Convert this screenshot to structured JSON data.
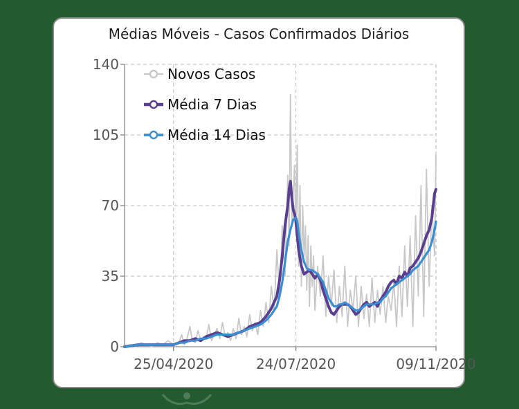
{
  "chart_data": {
    "type": "line",
    "title": "Médias Móveis - Casos Confirmados Diários",
    "ylim": [
      0,
      140
    ],
    "yticks": [
      0,
      35,
      70,
      105,
      140
    ],
    "xticks": [
      "25/04/2020",
      "24/07/2020",
      "09/11/2020"
    ],
    "x_range_days": [
      0,
      229
    ],
    "xtick_days": [
      36,
      126,
      234
    ],
    "legend_position": "top-left",
    "grid": true,
    "series": [
      {
        "name": "Novos Casos",
        "color": "#c8c8c8",
        "points": [
          [
            0,
            0
          ],
          [
            4,
            1
          ],
          [
            8,
            0
          ],
          [
            12,
            2
          ],
          [
            16,
            1
          ],
          [
            20,
            0
          ],
          [
            24,
            2
          ],
          [
            28,
            1
          ],
          [
            32,
            3
          ],
          [
            36,
            1
          ],
          [
            40,
            2
          ],
          [
            42,
            6
          ],
          [
            44,
            1
          ],
          [
            46,
            4
          ],
          [
            48,
            10
          ],
          [
            50,
            3
          ],
          [
            52,
            2
          ],
          [
            54,
            8
          ],
          [
            56,
            3
          ],
          [
            58,
            5
          ],
          [
            60,
            4
          ],
          [
            62,
            11
          ],
          [
            64,
            3
          ],
          [
            66,
            6
          ],
          [
            68,
            9
          ],
          [
            70,
            4
          ],
          [
            72,
            12
          ],
          [
            74,
            5
          ],
          [
            76,
            7
          ],
          [
            78,
            3
          ],
          [
            80,
            9
          ],
          [
            82,
            4
          ],
          [
            84,
            14
          ],
          [
            86,
            6
          ],
          [
            88,
            10
          ],
          [
            90,
            5
          ],
          [
            92,
            16
          ],
          [
            94,
            8
          ],
          [
            96,
            12
          ],
          [
            98,
            6
          ],
          [
            100,
            18
          ],
          [
            102,
            10
          ],
          [
            104,
            22
          ],
          [
            106,
            12
          ],
          [
            108,
            30
          ],
          [
            110,
            18
          ],
          [
            112,
            48
          ],
          [
            114,
            25
          ],
          [
            116,
            60
          ],
          [
            118,
            35
          ],
          [
            120,
            85
          ],
          [
            121,
            50
          ],
          [
            122,
            125
          ],
          [
            123,
            60
          ],
          [
            124,
            75
          ],
          [
            125,
            90
          ],
          [
            126,
            55
          ],
          [
            127,
            100
          ],
          [
            128,
            40
          ],
          [
            129,
            80
          ],
          [
            130,
            30
          ],
          [
            131,
            70
          ],
          [
            132,
            45
          ],
          [
            133,
            60
          ],
          [
            134,
            28
          ],
          [
            135,
            55
          ],
          [
            136,
            20
          ],
          [
            137,
            50
          ],
          [
            138,
            30
          ],
          [
            139,
            45
          ],
          [
            140,
            18
          ],
          [
            142,
            40
          ],
          [
            144,
            25
          ],
          [
            146,
            45
          ],
          [
            148,
            15
          ],
          [
            150,
            35
          ],
          [
            152,
            20
          ],
          [
            154,
            38
          ],
          [
            156,
            12
          ],
          [
            158,
            30
          ],
          [
            160,
            15
          ],
          [
            162,
            40
          ],
          [
            164,
            10
          ],
          [
            166,
            28
          ],
          [
            168,
            18
          ],
          [
            170,
            35
          ],
          [
            172,
            10
          ],
          [
            174,
            30
          ],
          [
            176,
            14
          ],
          [
            178,
            26
          ],
          [
            180,
            10
          ],
          [
            182,
            34
          ],
          [
            184,
            12
          ],
          [
            186,
            28
          ],
          [
            188,
            16
          ],
          [
            190,
            30
          ],
          [
            192,
            12
          ],
          [
            194,
            25
          ],
          [
            196,
            18
          ],
          [
            198,
            32
          ],
          [
            200,
            10
          ],
          [
            202,
            40
          ],
          [
            204,
            15
          ],
          [
            206,
            50
          ],
          [
            208,
            20
          ],
          [
            210,
            55
          ],
          [
            212,
            10
          ],
          [
            214,
            65
          ],
          [
            216,
            25
          ],
          [
            218,
            80
          ],
          [
            220,
            15
          ],
          [
            222,
            88
          ],
          [
            224,
            30
          ],
          [
            226,
            70
          ],
          [
            228,
            45
          ],
          [
            229,
            95
          ]
        ]
      },
      {
        "name": "Média 7 Dias",
        "color": "#5a3f8e",
        "points": [
          [
            0,
            0
          ],
          [
            10,
            1
          ],
          [
            20,
            1
          ],
          [
            30,
            1
          ],
          [
            36,
            1
          ],
          [
            40,
            2
          ],
          [
            44,
            3
          ],
          [
            48,
            3
          ],
          [
            52,
            4
          ],
          [
            56,
            3
          ],
          [
            60,
            5
          ],
          [
            64,
            6
          ],
          [
            68,
            7
          ],
          [
            72,
            6
          ],
          [
            76,
            5
          ],
          [
            80,
            6
          ],
          [
            84,
            7
          ],
          [
            88,
            8
          ],
          [
            92,
            10
          ],
          [
            96,
            11
          ],
          [
            100,
            12
          ],
          [
            104,
            15
          ],
          [
            108,
            19
          ],
          [
            112,
            25
          ],
          [
            114,
            33
          ],
          [
            116,
            45
          ],
          [
            118,
            60
          ],
          [
            120,
            70
          ],
          [
            121,
            78
          ],
          [
            122,
            82
          ],
          [
            123,
            74
          ],
          [
            124,
            68
          ],
          [
            125,
            66
          ],
          [
            126,
            62
          ],
          [
            127,
            55
          ],
          [
            128,
            48
          ],
          [
            129,
            44
          ],
          [
            130,
            40
          ],
          [
            132,
            36
          ],
          [
            134,
            37
          ],
          [
            136,
            38
          ],
          [
            138,
            36
          ],
          [
            140,
            34
          ],
          [
            142,
            36
          ],
          [
            144,
            33
          ],
          [
            146,
            28
          ],
          [
            148,
            24
          ],
          [
            150,
            20
          ],
          [
            152,
            17
          ],
          [
            154,
            16
          ],
          [
            156,
            18
          ],
          [
            158,
            20
          ],
          [
            160,
            21
          ],
          [
            162,
            21
          ],
          [
            164,
            21
          ],
          [
            166,
            20
          ],
          [
            168,
            18
          ],
          [
            170,
            16
          ],
          [
            172,
            17
          ],
          [
            174,
            19
          ],
          [
            176,
            21
          ],
          [
            178,
            22
          ],
          [
            180,
            20
          ],
          [
            182,
            21
          ],
          [
            184,
            22
          ],
          [
            186,
            20
          ],
          [
            188,
            23
          ],
          [
            190,
            25
          ],
          [
            192,
            27
          ],
          [
            194,
            30
          ],
          [
            196,
            32
          ],
          [
            198,
            33
          ],
          [
            200,
            31
          ],
          [
            202,
            35
          ],
          [
            204,
            34
          ],
          [
            206,
            37
          ],
          [
            208,
            35
          ],
          [
            210,
            39
          ],
          [
            212,
            40
          ],
          [
            214,
            42
          ],
          [
            216,
            44
          ],
          [
            218,
            47
          ],
          [
            220,
            51
          ],
          [
            222,
            55
          ],
          [
            224,
            58
          ],
          [
            226,
            64
          ],
          [
            228,
            76
          ],
          [
            229,
            78
          ]
        ]
      },
      {
        "name": "Média 14 Dias",
        "color": "#3b8fd0",
        "points": [
          [
            0,
            0
          ],
          [
            10,
            1
          ],
          [
            20,
            1
          ],
          [
            30,
            1
          ],
          [
            36,
            1
          ],
          [
            40,
            2
          ],
          [
            44,
            2
          ],
          [
            48,
            3
          ],
          [
            52,
            3
          ],
          [
            56,
            4
          ],
          [
            60,
            4
          ],
          [
            64,
            5
          ],
          [
            68,
            6
          ],
          [
            72,
            6
          ],
          [
            76,
            6
          ],
          [
            80,
            6
          ],
          [
            84,
            7
          ],
          [
            88,
            8
          ],
          [
            92,
            9
          ],
          [
            96,
            10
          ],
          [
            100,
            11
          ],
          [
            104,
            13
          ],
          [
            108,
            16
          ],
          [
            112,
            20
          ],
          [
            114,
            25
          ],
          [
            116,
            32
          ],
          [
            118,
            42
          ],
          [
            120,
            52
          ],
          [
            122,
            58
          ],
          [
            124,
            63
          ],
          [
            126,
            64
          ],
          [
            127,
            62
          ],
          [
            128,
            57
          ],
          [
            129,
            52
          ],
          [
            130,
            48
          ],
          [
            132,
            42
          ],
          [
            134,
            39
          ],
          [
            136,
            38
          ],
          [
            138,
            38
          ],
          [
            140,
            37
          ],
          [
            142,
            36
          ],
          [
            144,
            34
          ],
          [
            146,
            32
          ],
          [
            148,
            28
          ],
          [
            150,
            24
          ],
          [
            152,
            22
          ],
          [
            154,
            20
          ],
          [
            156,
            20
          ],
          [
            158,
            21
          ],
          [
            160,
            21
          ],
          [
            162,
            22
          ],
          [
            164,
            21
          ],
          [
            166,
            20
          ],
          [
            168,
            19
          ],
          [
            170,
            18
          ],
          [
            172,
            18
          ],
          [
            174,
            19
          ],
          [
            176,
            20
          ],
          [
            178,
            21
          ],
          [
            180,
            21
          ],
          [
            182,
            21
          ],
          [
            184,
            21
          ],
          [
            186,
            22
          ],
          [
            188,
            22
          ],
          [
            190,
            24
          ],
          [
            192,
            25
          ],
          [
            194,
            27
          ],
          [
            196,
            29
          ],
          [
            198,
            30
          ],
          [
            200,
            31
          ],
          [
            202,
            32
          ],
          [
            204,
            33
          ],
          [
            206,
            34
          ],
          [
            208,
            35
          ],
          [
            210,
            36
          ],
          [
            212,
            38
          ],
          [
            214,
            39
          ],
          [
            216,
            40
          ],
          [
            218,
            42
          ],
          [
            220,
            44
          ],
          [
            222,
            46
          ],
          [
            224,
            48
          ],
          [
            226,
            52
          ],
          [
            228,
            58
          ],
          [
            229,
            62
          ]
        ]
      }
    ]
  }
}
